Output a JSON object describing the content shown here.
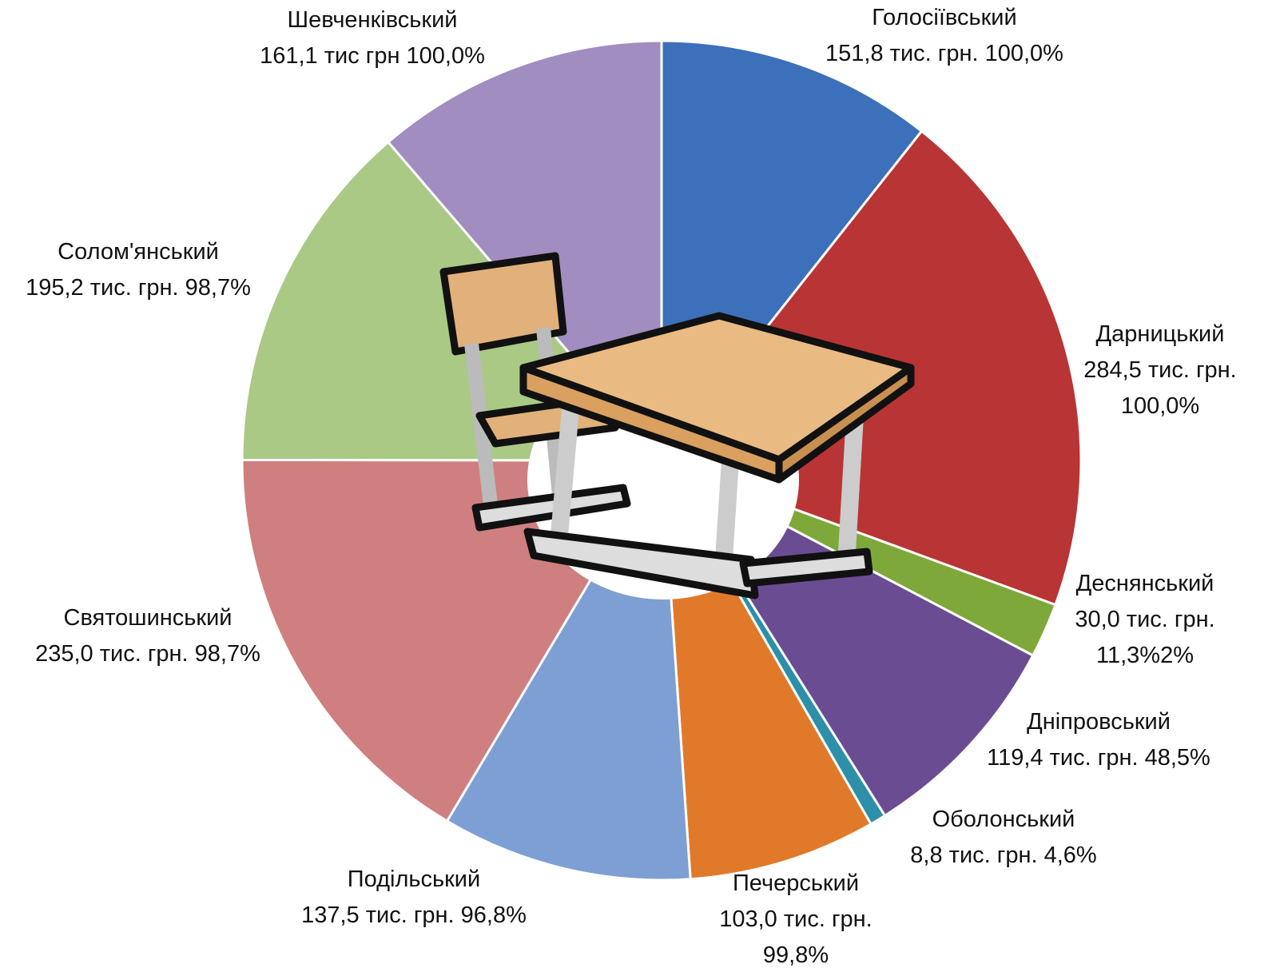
{
  "chart_data": {
    "type": "pie",
    "categories": [
      "Голосіївський",
      "Дарницький",
      "Деснянський",
      "Дніпровський",
      "Оболонський",
      "Печерський",
      "Подільський",
      "Святошинський",
      "Солом'янський",
      "Шевченківський"
    ],
    "values": [
      151.8,
      284.5,
      30.0,
      119.4,
      8.8,
      103.0,
      137.5,
      235.0,
      195.2,
      161.1
    ],
    "value_labels": [
      "151,8 тис. грн. 100,0%",
      "284,5 тис. грн. 100,0%",
      "30,0 тис. грн. 11,3%2%",
      "119,4 тис. грн. 48,5%",
      "8,8 тис. грн. 4,6%",
      "103,0 тис. грн. 99,8%",
      "137,5 тис. грн. 96,8%",
      "235,0 тис. грн. 98,7%",
      "195,2 тис. грн. 98,7%",
      "161,1 тис грн 100,0%"
    ],
    "colors": [
      "#3d70ba",
      "#b93434",
      "#7fa83a",
      "#6a4c93",
      "#2d8fa8",
      "#e07a2a",
      "#7d9fd3",
      "#cf7f7f",
      "#a9c985",
      "#a18dbf"
    ]
  }
}
